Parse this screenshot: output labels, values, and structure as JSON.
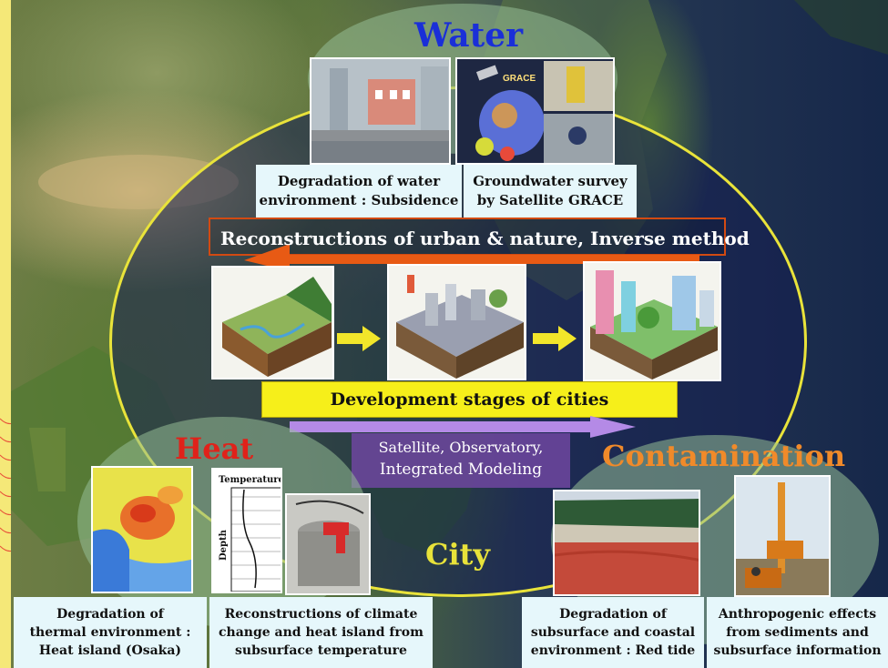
{
  "sections": {
    "water": {
      "title": "Water",
      "captions": [
        {
          "line1": "Degradation of water",
          "line2": "environment : Subsidence"
        },
        {
          "line1": "Groundwater survey",
          "line2": "by Satellite GRACE"
        }
      ],
      "grace_label": "GRACE"
    },
    "heat": {
      "title": "Heat",
      "profile_xlabel": "Temperature",
      "profile_ylabel": "Depth",
      "captions": [
        {
          "line1": "Degradation of",
          "line2": "thermal environment :",
          "line3": "Heat island (Osaka)"
        },
        {
          "line1": "Reconstructions of climate",
          "line2": "change and heat island from",
          "line3": "subsurface temperature"
        }
      ]
    },
    "contamination": {
      "title": "Contamination",
      "captions": [
        {
          "line1": "Degradation of",
          "line2": "subsurface and coastal",
          "line3": "environment : Red tide"
        },
        {
          "line1": "Anthropogenic effects",
          "line2": "from sediments and",
          "line3": "subsurface information"
        }
      ]
    },
    "city": {
      "title": "City"
    }
  },
  "center": {
    "reconstruction_label": "Reconstructions of urban & nature, Inverse method",
    "development_label": "Development stages of cities",
    "methods_line1": "Satellite, Observatory,",
    "methods_line2": "Integrated Modeling"
  },
  "colors": {
    "background": "#f5e878",
    "ellipse_outline": "#e9e33a",
    "water_title": "#1a2fd8",
    "heat_title": "#e0221a",
    "contamination_title": "#f08a2a",
    "city_title": "#e8e23a",
    "caption_bg": "#e6f7fb",
    "development_bar": "#f6ef1a",
    "reconstruction_arrow": "#e85a14",
    "methods_arrow": "#b48ae6"
  },
  "icons": [
    "right-arrow-icon",
    "left-arrow-icon"
  ]
}
